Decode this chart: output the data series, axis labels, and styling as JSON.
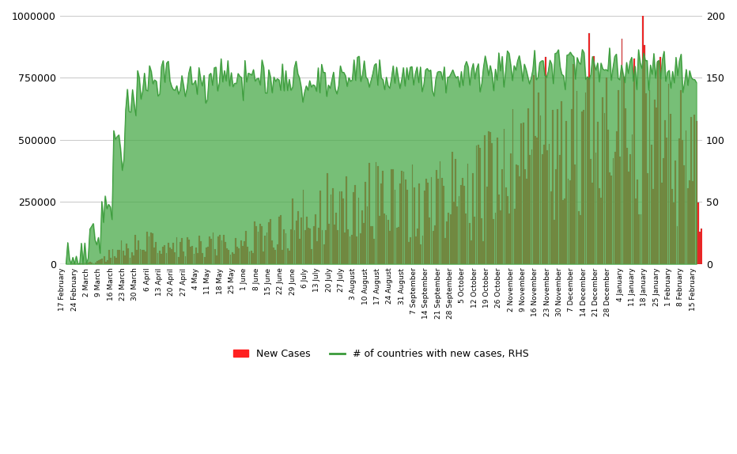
{
  "bar_color": "#ff2020",
  "bar_edge_color": "#555555",
  "line_color": "#3a9a3a",
  "line_fill_color": "#4aaa4a",
  "bg_color": "#ffffff",
  "grid_color": "#cccccc",
  "ylim_left": [
    0,
    1000000
  ],
  "ylim_right": [
    0,
    200
  ],
  "yticks_left": [
    0,
    250000,
    500000,
    750000,
    1000000
  ],
  "yticks_right": [
    0,
    50,
    100,
    150,
    200
  ],
  "legend_labels": [
    "New Cases",
    "# of countries with new cases, RHS"
  ],
  "x_labels": [
    "17 February",
    "24 February",
    "2 March",
    "9 March",
    "16 March",
    "23 March",
    "30 March",
    "6 April",
    "13 April",
    "20 April",
    "27 April",
    "4 May",
    "11 May",
    "18 May",
    "25 May",
    "1 June",
    "8 June",
    "15 June",
    "22 June",
    "29 June",
    "6 July",
    "13 July",
    "20 July",
    "27 July",
    "3 August",
    "10 August",
    "17 August",
    "24 August",
    "31 August",
    "7 September",
    "14 September",
    "21 September",
    "28 September",
    "5 October",
    "12 October",
    "19 October",
    "26 October",
    "2 November",
    "9 November",
    "16 November",
    "23 November",
    "30 November",
    "7 December",
    "14 December",
    "21 December",
    "28 December",
    "4 January",
    "11 January",
    "18 January",
    "25 January",
    "1 February",
    "8 February",
    "15 February"
  ],
  "new_cases_weekly": [
    300,
    1500,
    7000,
    22000,
    52000,
    68000,
    78000,
    83000,
    86000,
    80000,
    78000,
    80000,
    86000,
    88000,
    90000,
    102000,
    112000,
    122000,
    138000,
    172000,
    192000,
    198000,
    232000,
    252000,
    262000,
    268000,
    272000,
    258000,
    255000,
    272000,
    278000,
    292000,
    288000,
    318000,
    312000,
    342000,
    358000,
    392000,
    458000,
    508000,
    568000,
    592000,
    608000,
    592000,
    618000,
    608000,
    588000,
    632000,
    708000,
    718000,
    508000,
    458000,
    388000
  ],
  "countries_base": [
    3,
    8,
    18,
    45,
    95,
    128,
    143,
    150,
    153,
    147,
    146,
    148,
    150,
    151,
    150,
    151,
    150,
    149,
    150,
    149,
    149,
    150,
    151,
    153,
    154,
    154,
    155,
    153,
    152,
    152,
    153,
    154,
    153,
    154,
    154,
    155,
    156,
    158,
    159,
    159,
    160,
    160,
    160,
    160,
    160,
    160,
    159,
    159,
    158,
    158,
    157,
    157,
    156
  ],
  "countries_noise_seed": 123
}
